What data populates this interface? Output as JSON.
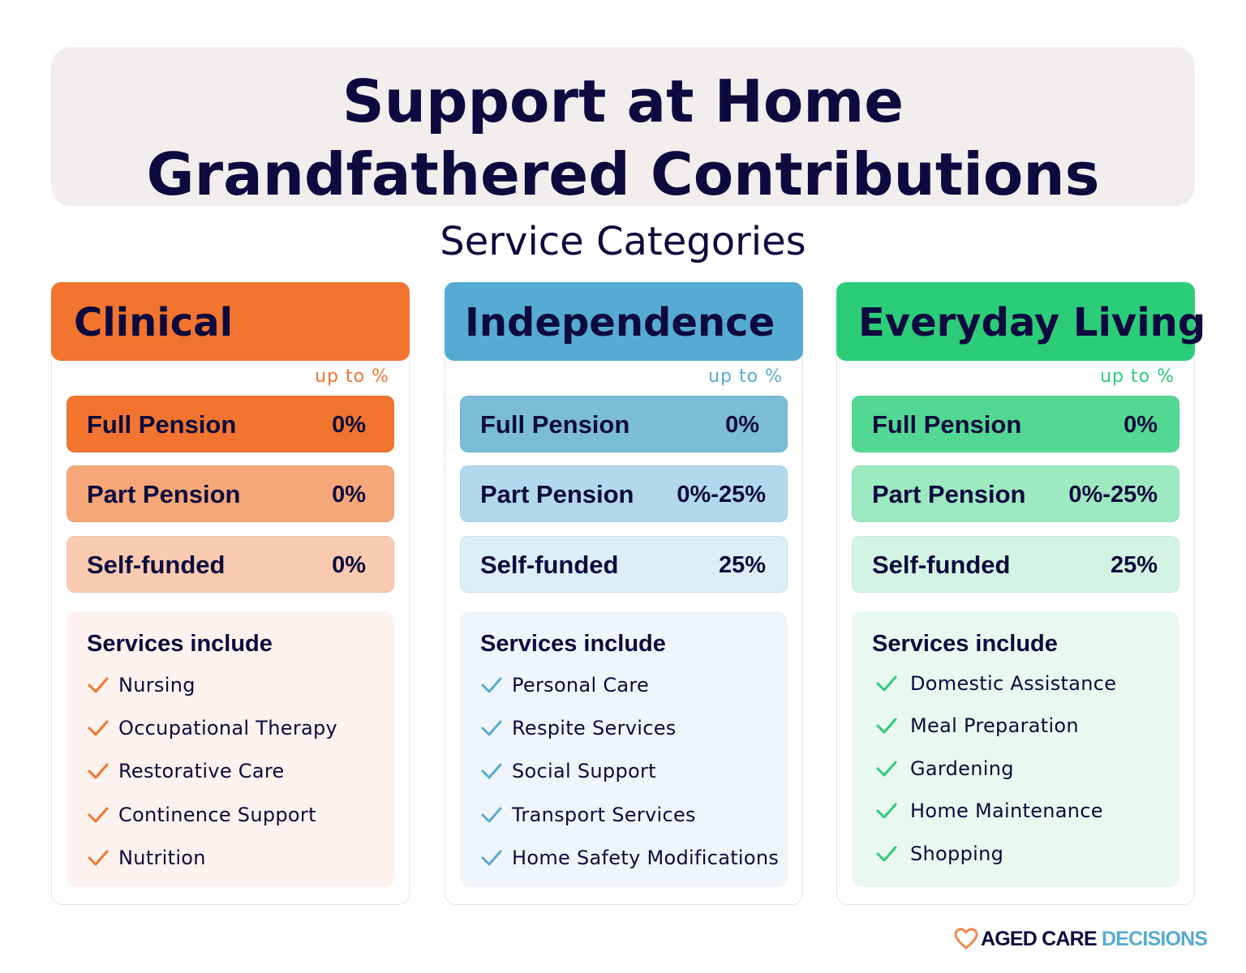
{
  "header": {
    "title_line1": "Support at Home",
    "title_line2": "Grandfathered Contributions"
  },
  "subtitle": "Service Categories",
  "colors": {
    "title_text": "#0c0a3e",
    "header_bg": "#f3eeee",
    "clinical": "#f2742f",
    "independence": "#56abd2",
    "everyday_living": "#2ccd79"
  },
  "categories": [
    {
      "name": "Clinical",
      "up_to_label": "up to %",
      "tiers": [
        {
          "label": "Full Pension",
          "value": "0%"
        },
        {
          "label": "Part Pension",
          "value": "0%"
        },
        {
          "label": "Self-funded",
          "value": "0%"
        }
      ],
      "services_title": "Services include",
      "services": [
        "Nursing",
        "Occupational Therapy",
        "Restorative Care",
        "Continence Support",
        "Nutrition"
      ],
      "icon": "check-icon"
    },
    {
      "name": "Independence",
      "up_to_label": "up to %",
      "tiers": [
        {
          "label": "Full Pension",
          "value": "0%"
        },
        {
          "label": "Part Pension",
          "value": "0%-25%"
        },
        {
          "label": "Self-funded",
          "value": "25%"
        }
      ],
      "services_title": "Services include",
      "services": [
        "Personal Care",
        "Respite Services",
        "Social Support",
        "Transport Services",
        "Home Safety Modifications"
      ],
      "icon": "check-icon"
    },
    {
      "name": "Everyday Living",
      "up_to_label": "up to %",
      "tiers": [
        {
          "label": "Full Pension",
          "value": "0%"
        },
        {
          "label": "Part Pension",
          "value": "0%-25%"
        },
        {
          "label": "Self-funded",
          "value": "25%"
        }
      ],
      "services_title": "Services include",
      "services": [
        "Domestic Assistance",
        "Meal Preparation",
        "Gardening",
        "Home Maintenance",
        "Shopping"
      ],
      "icon": "check-icon"
    }
  ],
  "logo": {
    "part1": "AGED CARE",
    "part2": "DECISIONS",
    "icon": "heart-icon"
  }
}
